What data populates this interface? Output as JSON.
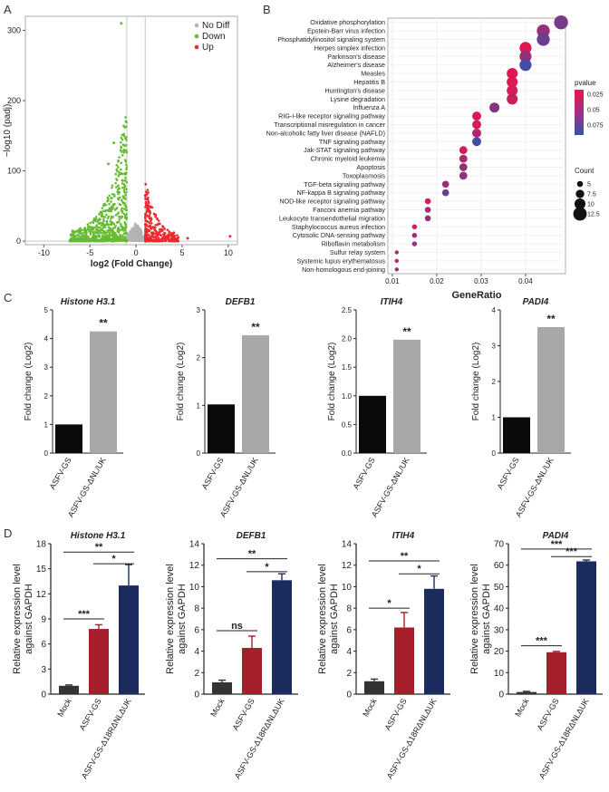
{
  "panel_letters": [
    "A",
    "B",
    "C",
    "D"
  ],
  "chart_data": [
    {
      "panel": "A",
      "type": "scatter",
      "title": "",
      "xlabel": "log2 (Fold Change)",
      "ylabel": "−log10 (padj)",
      "xlim": [
        -12,
        11
      ],
      "ylim": [
        -5,
        320
      ],
      "xticks": [
        -10,
        -5,
        0,
        5,
        10
      ],
      "yticks": [
        0,
        100,
        200,
        300
      ],
      "thresholds": {
        "log2fc": [
          -1,
          1
        ],
        "neglog10p": 0
      },
      "legend": [
        {
          "label": "No Diff",
          "color": "#b3b3b3"
        },
        {
          "label": "Down",
          "color": "#66bb33"
        },
        {
          "label": "Up",
          "color": "#e8292d"
        }
      ],
      "highlight_points": [
        {
          "group": "Up",
          "x": 10.2,
          "y": 7
        },
        {
          "group": "Up",
          "x": 5.6,
          "y": 4
        },
        {
          "group": "Up",
          "x": 4.1,
          "y": 12
        },
        {
          "group": "Down",
          "x": -6.8,
          "y": 1
        },
        {
          "group": "Down",
          "x": -3.0,
          "y": 110
        },
        {
          "group": "Down",
          "x": -2.4,
          "y": 140
        },
        {
          "group": "Down",
          "x": -1.6,
          "y": 310
        }
      ]
    },
    {
      "panel": "B",
      "type": "scatter",
      "subtype": "dot-plot",
      "xlabel": "GeneRatio",
      "xlim": [
        0.009,
        0.049
      ],
      "xticks": [
        0.01,
        0.02,
        0.03,
        0.04
      ],
      "color_legend": {
        "title": "pvalue",
        "ticks": [
          0.025,
          0.05,
          0.075
        ],
        "low_color": "#e8154d",
        "high_color": "#3a4fa8"
      },
      "size_legend": {
        "title": "Count",
        "ticks": [
          5.0,
          7.5,
          10.0,
          12.5
        ]
      },
      "terms": [
        {
          "name": "Oxidative phosphorylation",
          "ratio": 0.048,
          "pvalue": 0.06,
          "count": 13
        },
        {
          "name": "Epstein-Barr virus infection",
          "ratio": 0.044,
          "pvalue": 0.045,
          "count": 12
        },
        {
          "name": "Phosphatidylinositol signaling system",
          "ratio": 0.044,
          "pvalue": 0.065,
          "count": 12
        },
        {
          "name": "Herpes simplex infection",
          "ratio": 0.04,
          "pvalue": 0.01,
          "count": 11
        },
        {
          "name": "Parkinson's disease",
          "ratio": 0.04,
          "pvalue": 0.045,
          "count": 11
        },
        {
          "name": "Alzheimer's disease",
          "ratio": 0.04,
          "pvalue": 0.085,
          "count": 11
        },
        {
          "name": "Measles",
          "ratio": 0.037,
          "pvalue": 0.01,
          "count": 10
        },
        {
          "name": "Hepatitis B",
          "ratio": 0.037,
          "pvalue": 0.012,
          "count": 10
        },
        {
          "name": "Huntington's disease",
          "ratio": 0.037,
          "pvalue": 0.015,
          "count": 10
        },
        {
          "name": "Lysine degradation",
          "ratio": 0.037,
          "pvalue": 0.02,
          "count": 10
        },
        {
          "name": "Influenza A",
          "ratio": 0.033,
          "pvalue": 0.055,
          "count": 9
        },
        {
          "name": "RIG-I-like receptor signaling pathway",
          "ratio": 0.029,
          "pvalue": 0.012,
          "count": 8
        },
        {
          "name": "Transcriptional misregulation in cancer",
          "ratio": 0.029,
          "pvalue": 0.015,
          "count": 8
        },
        {
          "name": "Non-alcoholic fatty liver disease (NAFLD)",
          "ratio": 0.029,
          "pvalue": 0.03,
          "count": 8
        },
        {
          "name": "TNF signaling pathway",
          "ratio": 0.029,
          "pvalue": 0.085,
          "count": 8
        },
        {
          "name": "Jak-STAT signaling pathway",
          "ratio": 0.026,
          "pvalue": 0.015,
          "count": 7
        },
        {
          "name": "Chronic myeloid leukemia",
          "ratio": 0.026,
          "pvalue": 0.035,
          "count": 7
        },
        {
          "name": "Apoptosis",
          "ratio": 0.026,
          "pvalue": 0.045,
          "count": 7
        },
        {
          "name": "Toxoplasmosis",
          "ratio": 0.026,
          "pvalue": 0.05,
          "count": 7
        },
        {
          "name": "TGF-beta signaling pathway",
          "ratio": 0.022,
          "pvalue": 0.045,
          "count": 6
        },
        {
          "name": "NF-kappa B signaling pathway",
          "ratio": 0.022,
          "pvalue": 0.065,
          "count": 6
        },
        {
          "name": "NOD-like receptor signaling pathway",
          "ratio": 0.018,
          "pvalue": 0.015,
          "count": 5
        },
        {
          "name": "Fanconi anemia pathway",
          "ratio": 0.018,
          "pvalue": 0.035,
          "count": 5
        },
        {
          "name": "Leukocyte transendothelial migration",
          "ratio": 0.018,
          "pvalue": 0.045,
          "count": 5
        },
        {
          "name": "Staphylococcus aureus infection",
          "ratio": 0.015,
          "pvalue": 0.015,
          "count": 4
        },
        {
          "name": "Cytosolic DNA-sensing pathway",
          "ratio": 0.015,
          "pvalue": 0.035,
          "count": 4
        },
        {
          "name": "Riboflavin metabolism",
          "ratio": 0.015,
          "pvalue": 0.05,
          "count": 4
        },
        {
          "name": "Sulfur relay system",
          "ratio": 0.011,
          "pvalue": 0.035,
          "count": 3
        },
        {
          "name": "Systemic lupus erythematosus",
          "ratio": 0.011,
          "pvalue": 0.015,
          "count": 3
        },
        {
          "name": "Non-homologous end-joining",
          "ratio": 0.011,
          "pvalue": 0.05,
          "count": 3
        }
      ]
    },
    {
      "panel": "C",
      "type": "bar",
      "title": "Histone H3.1",
      "ylabel": "Fold change (Log2)",
      "categories": [
        "ASFV-GS",
        "ASFV-GS-ΔNL/UK"
      ],
      "values": [
        1.0,
        4.25
      ],
      "colors": [
        "#0a0a0a",
        "#a8a8a8"
      ],
      "ylim": [
        0,
        5
      ],
      "yticks": [
        "0",
        "1",
        "2",
        "3",
        "4",
        "5"
      ],
      "significance": "**"
    },
    {
      "panel": "C",
      "type": "bar",
      "title": "DEFB1",
      "ylabel": "Fold change (Log2)",
      "categories": [
        "ASFV-GS",
        "ASFV-GS-ΔNL/UK"
      ],
      "values": [
        1.02,
        2.47
      ],
      "colors": [
        "#0a0a0a",
        "#a8a8a8"
      ],
      "ylim": [
        0,
        3
      ],
      "yticks": [
        "0",
        "1",
        "2",
        "3"
      ],
      "significance": "**"
    },
    {
      "panel": "C",
      "type": "bar",
      "title": "ITIH4",
      "ylabel": "Fold change (Log2)",
      "categories": [
        "ASFV-GS",
        "ASFV-GS-ΔNL/UK"
      ],
      "values": [
        1.0,
        1.98
      ],
      "colors": [
        "#0a0a0a",
        "#a8a8a8"
      ],
      "ylim": [
        0,
        2.5
      ],
      "yticks": [
        "0.0",
        "0.5",
        "1.0",
        "1.5",
        "2.0",
        "2.5"
      ],
      "significance": "**"
    },
    {
      "panel": "C",
      "type": "bar",
      "title": "PADI4",
      "ylabel": "Fold change (Log2)",
      "categories": [
        "ASFV-GS",
        "ASFV-GS-ΔNL/UK"
      ],
      "values": [
        1.0,
        3.52
      ],
      "colors": [
        "#0a0a0a",
        "#a8a8a8"
      ],
      "ylim": [
        0,
        4
      ],
      "yticks": [
        "0",
        "1",
        "2",
        "3",
        "4"
      ],
      "significance": "**"
    },
    {
      "panel": "D",
      "type": "bar",
      "title": "Histone H3.1",
      "ylabel_line1": "Relative expression level",
      "ylabel_line2": "against GAPDH",
      "categories": [
        "Mock",
        "ASFV-GS",
        "ASFV-GS-Δ18RΔNLΔUK"
      ],
      "values": [
        1.0,
        7.8,
        13.0
      ],
      "errors": [
        0.1,
        0.5,
        2.5
      ],
      "colors": [
        "#333333",
        "#a51f2b",
        "#1c2b5e"
      ],
      "ylim": [
        0,
        18
      ],
      "yticks": [
        "0",
        "3",
        "6",
        "9",
        "12",
        "15",
        "18"
      ],
      "comparisons": [
        {
          "from": 0,
          "to": 1,
          "label": "***",
          "level": 9.0
        },
        {
          "from": 1,
          "to": 2,
          "label": "*",
          "level": 15.6
        },
        {
          "from": 0,
          "to": 2,
          "label": "**",
          "level": 17.0
        }
      ]
    },
    {
      "panel": "D",
      "type": "bar",
      "title": "DEFB1",
      "ylabel_line1": "Relative expression level",
      "ylabel_line2": "against GAPDH",
      "categories": [
        "Mock",
        "ASFV-GS",
        "ASFV-GS-Δ18RΔNLΔUK"
      ],
      "values": [
        1.1,
        4.3,
        10.6
      ],
      "errors": [
        0.2,
        1.1,
        0.6
      ],
      "colors": [
        "#333333",
        "#a51f2b",
        "#1c2b5e"
      ],
      "ylim": [
        0,
        14
      ],
      "yticks": [
        "0",
        "2",
        "4",
        "6",
        "8",
        "10",
        "12",
        "14"
      ],
      "comparisons": [
        {
          "from": 0,
          "to": 1,
          "label": "ns",
          "level": 5.9
        },
        {
          "from": 1,
          "to": 2,
          "label": "*",
          "level": 11.4
        },
        {
          "from": 0,
          "to": 2,
          "label": "**",
          "level": 12.6
        }
      ]
    },
    {
      "panel": "D",
      "type": "bar",
      "title": "ITIH4",
      "ylabel_line1": "Relative expression level",
      "ylabel_line2": "against GAPDH",
      "categories": [
        "Mock",
        "ASFV-GS",
        "ASFV-GS-Δ18RΔNLΔUK"
      ],
      "values": [
        1.2,
        6.2,
        9.8
      ],
      "errors": [
        0.2,
        1.4,
        1.2
      ],
      "colors": [
        "#333333",
        "#a51f2b",
        "#1c2b5e"
      ],
      "ylim": [
        0,
        14
      ],
      "yticks": [
        "0",
        "2",
        "4",
        "6",
        "8",
        "10",
        "12",
        "14"
      ],
      "comparisons": [
        {
          "from": 0,
          "to": 1,
          "label": "*",
          "level": 8.0
        },
        {
          "from": 1,
          "to": 2,
          "label": "*",
          "level": 11.2
        },
        {
          "from": 0,
          "to": 2,
          "label": "**",
          "level": 12.4
        }
      ]
    },
    {
      "panel": "D",
      "type": "bar",
      "title": "PADI4",
      "ylabel_line1": "Relative expression level",
      "ylabel_line2": "against GAPDH",
      "categories": [
        "Mock",
        "ASFV-GS",
        "ASFV-GS-Δ18RΔNLΔUK"
      ],
      "values": [
        1.0,
        19.5,
        61.8
      ],
      "errors": [
        0.3,
        0.4,
        0.6
      ],
      "colors": [
        "#333333",
        "#a51f2b",
        "#1c2b5e"
      ],
      "ylim": [
        0,
        70
      ],
      "yticks": [
        "0",
        "10",
        "20",
        "30",
        "40",
        "50",
        "60",
        "70"
      ],
      "comparisons": [
        {
          "from": 0,
          "to": 1,
          "label": "***",
          "level": 22.5
        },
        {
          "from": 1,
          "to": 2,
          "label": "***",
          "level": 64.0
        },
        {
          "from": 0,
          "to": 2,
          "label": "***",
          "level": 67.5
        }
      ]
    }
  ]
}
